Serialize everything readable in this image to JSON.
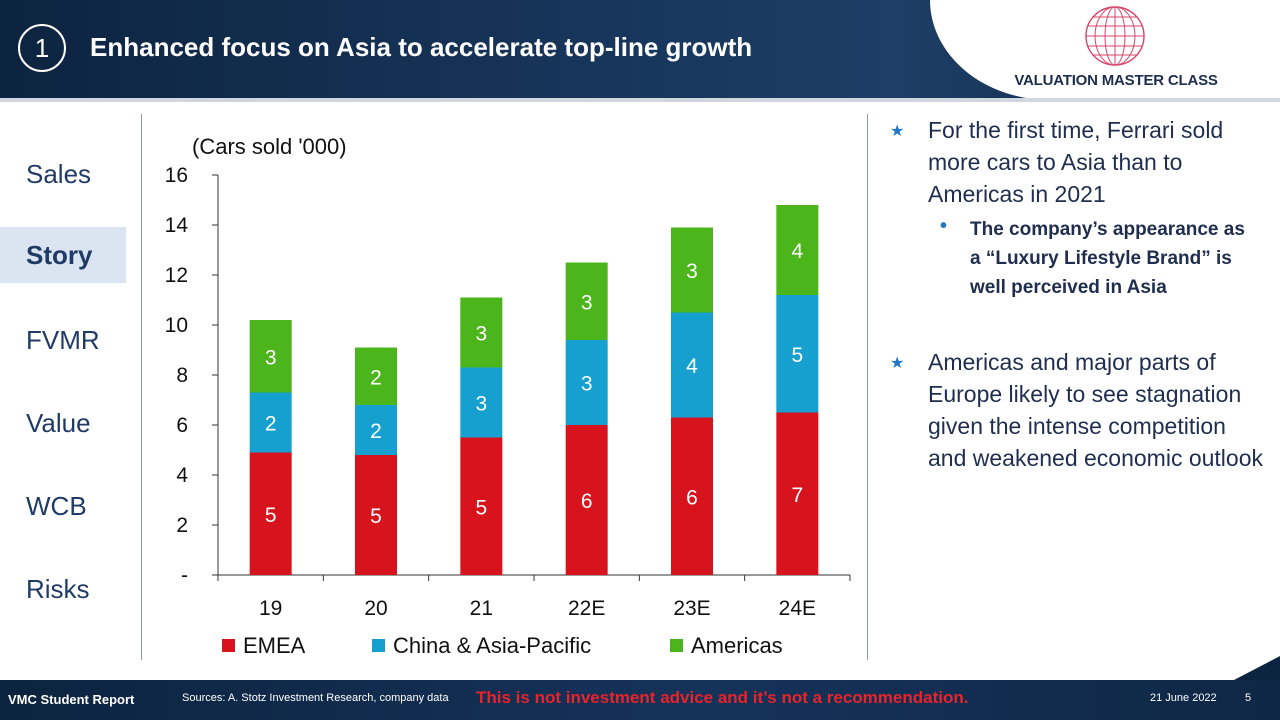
{
  "header": {
    "number": "1",
    "title": "Enhanced focus on Asia to accelerate top-line growth",
    "logo_text": "VALUATION MASTER CLASS"
  },
  "nav": {
    "items": [
      {
        "label": "Sales",
        "active": false
      },
      {
        "label": "Story",
        "active": true
      },
      {
        "label": "FVMR",
        "active": false
      },
      {
        "label": "Value",
        "active": false
      },
      {
        "label": "WCB",
        "active": false
      },
      {
        "label": "Risks",
        "active": false
      }
    ]
  },
  "chart_data": {
    "type": "bar",
    "stacked": true,
    "unit_label": "(Cars sold '000)",
    "categories": [
      "19",
      "20",
      "21",
      "22E",
      "23E",
      "24E"
    ],
    "series": [
      {
        "name": "EMEA",
        "color": "#d7141d",
        "values": [
          4.9,
          4.8,
          5.5,
          6.0,
          6.3,
          6.5
        ],
        "labels": [
          "5",
          "5",
          "5",
          "6",
          "6",
          "7"
        ]
      },
      {
        "name": "China & Asia-Pacific",
        "color": "#16a0d0",
        "values": [
          2.4,
          2.0,
          2.8,
          3.4,
          4.2,
          4.7
        ],
        "labels": [
          "2",
          "2",
          "3",
          "3",
          "4",
          "5"
        ]
      },
      {
        "name": "Americas",
        "color": "#4cb51c",
        "values": [
          2.9,
          2.3,
          2.8,
          3.1,
          3.4,
          3.6
        ],
        "labels": [
          "3",
          "2",
          "3",
          "3",
          "3",
          "4"
        ]
      }
    ],
    "ylim": [
      0,
      16
    ],
    "yticks": [
      "-",
      "2",
      "4",
      "6",
      "8",
      "10",
      "12",
      "14",
      "16"
    ],
    "legend": "bottom"
  },
  "bullets": {
    "b1": "For the first time, Ferrari sold more cars to Asia than to Americas in 2021",
    "b1_sub": "The company’s appearance as a “Luxury Lifestyle Brand” is well perceived in Asia",
    "b2": "Americas and major parts of Europe likely to see stagnation given the intense competition and weakened economic outlook",
    "star": "★",
    "dot": "•"
  },
  "footer": {
    "report": "VMC Student Report",
    "sources": "Sources: A. Stotz Investment Research, company data",
    "warning": "This is not investment advice and it’s not a recommendation.",
    "date": "21 June 2022",
    "page": "5"
  }
}
